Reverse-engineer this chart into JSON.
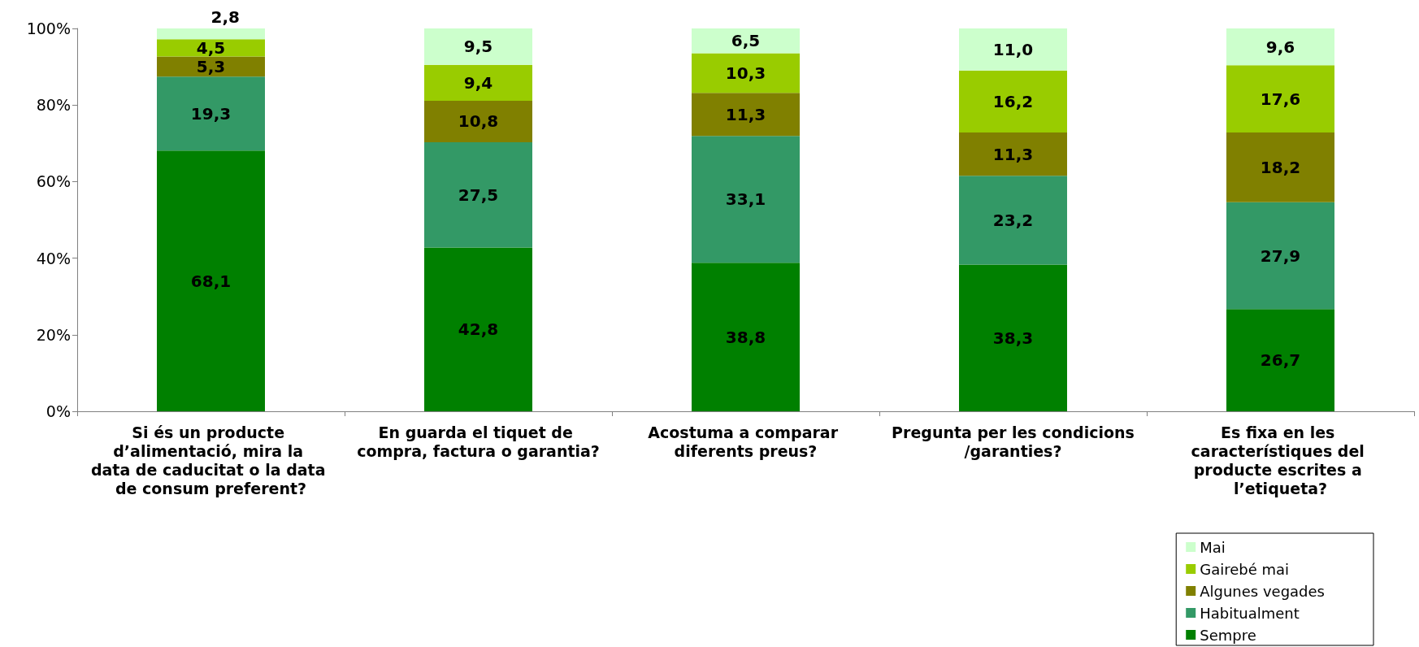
{
  "chart_data": {
    "type": "bar",
    "stacked": true,
    "categories": [
      "Si és un producte d’alimentació, mira la data de caducitat o la data de consum preferent?",
      "En guarda el tiquet de compra, factura o garantia?",
      "Acostuma a comparar diferents preus?",
      "Pregunta per les condicions/garanties?",
      "Es fixa en les característiques del producte escrites a l’etiqueta?"
    ],
    "series": [
      {
        "name": "Sempre",
        "color": "#008000",
        "values": [
          68.1,
          42.8,
          38.8,
          38.3,
          26.7
        ],
        "value_labels": [
          "68,1",
          "42,8",
          "38,8",
          "38,3",
          "26,7"
        ]
      },
      {
        "name": "Habitualment",
        "color": "#339966",
        "values": [
          19.3,
          27.5,
          33.1,
          23.2,
          27.9
        ],
        "value_labels": [
          "19,3",
          "27,5",
          "33,1",
          "23,2",
          "27,9"
        ]
      },
      {
        "name": "Algunes vegades",
        "color": "#808000",
        "values": [
          5.3,
          10.8,
          11.3,
          11.3,
          18.2
        ],
        "value_labels": [
          "5,3",
          "10,8",
          "11,3",
          "11,3",
          "18,2"
        ]
      },
      {
        "name": "Gairebé mai",
        "color": "#99cc00",
        "values": [
          4.5,
          9.4,
          10.3,
          16.2,
          17.6
        ],
        "value_labels": [
          "4,5",
          "9,4",
          "10,3",
          "16,2",
          "17,6"
        ]
      },
      {
        "name": "Mai",
        "color": "#ccffcc",
        "values": [
          2.8,
          9.5,
          6.5,
          11.0,
          9.6
        ],
        "value_labels": [
          "2,8",
          "9,5",
          "6,5",
          "11,0",
          "9,6"
        ]
      }
    ],
    "ylim": [
      0,
      100
    ],
    "yticks": [
      {
        "value": 0,
        "label": "0%"
      },
      {
        "value": 20,
        "label": "20%"
      },
      {
        "value": 40,
        "label": "40%"
      },
      {
        "value": 60,
        "label": "60%"
      },
      {
        "value": 80,
        "label": "80%"
      },
      {
        "value": 100,
        "label": "100%"
      }
    ],
    "grid": false,
    "legend": "bottom right"
  }
}
